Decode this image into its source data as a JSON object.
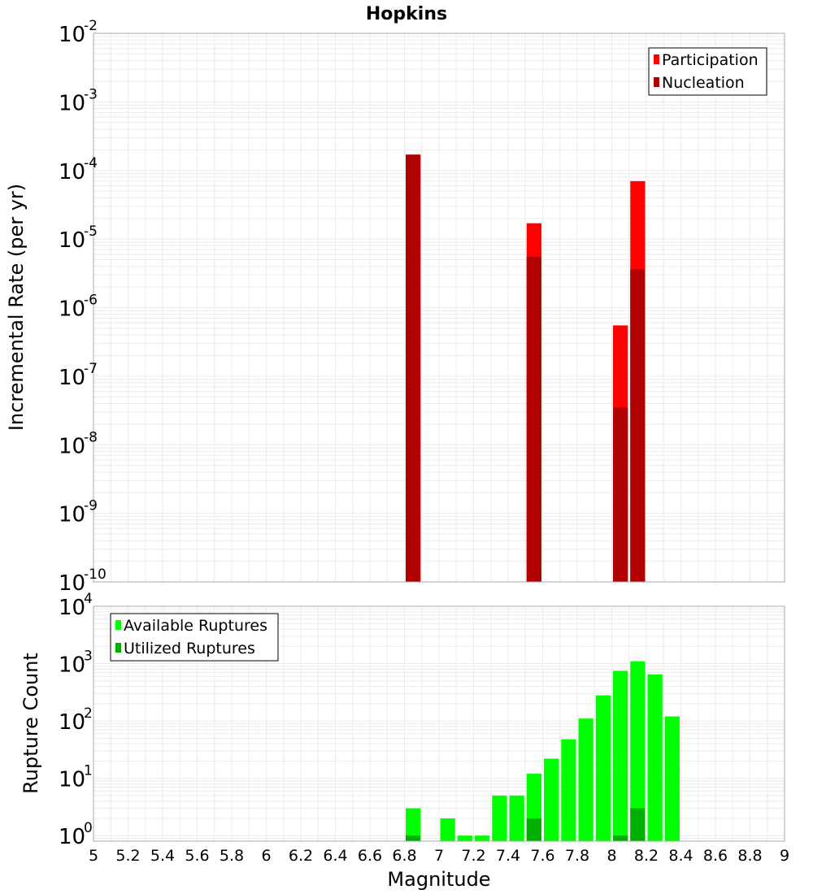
{
  "chart_data": [
    {
      "type": "bar",
      "title": "Hopkins",
      "ylabel": "Incremental Rate (per yr)",
      "xlabel": "",
      "yscale": "log",
      "ylim": [
        1e-10,
        0.01
      ],
      "xlim": [
        5,
        9
      ],
      "y_ticks": [
        {
          "base": "10",
          "exp": "-10",
          "value": 1e-10
        },
        {
          "base": "10",
          "exp": "-9",
          "value": 1e-09
        },
        {
          "base": "10",
          "exp": "-8",
          "value": 1e-08
        },
        {
          "base": "10",
          "exp": "-7",
          "value": 1e-07
        },
        {
          "base": "10",
          "exp": "-6",
          "value": 1e-06
        },
        {
          "base": "10",
          "exp": "-5",
          "value": 1e-05
        },
        {
          "base": "10",
          "exp": "-4",
          "value": 0.0001
        },
        {
          "base": "10",
          "exp": "-3",
          "value": 0.001
        },
        {
          "base": "10",
          "exp": "-2",
          "value": 0.01
        }
      ],
      "bin_width": 0.1,
      "series": [
        {
          "name": "Participation",
          "color": "#ff0000",
          "points": [
            {
              "x": 6.85,
              "y": 0.00017
            },
            {
              "x": 7.55,
              "y": 1.7e-05
            },
            {
              "x": 8.05,
              "y": 5.5e-07
            },
            {
              "x": 8.15,
              "y": 7e-05
            }
          ]
        },
        {
          "name": "Nucleation",
          "color": "#b00000",
          "points": [
            {
              "x": 6.85,
              "y": 0.00017
            },
            {
              "x": 7.55,
              "y": 5.5e-06
            },
            {
              "x": 8.05,
              "y": 3.5e-08
            },
            {
              "x": 8.15,
              "y": 3.6e-06
            }
          ]
        }
      ],
      "legend": {
        "position": "top-right",
        "entries": [
          "Participation",
          "Nucleation"
        ]
      }
    },
    {
      "type": "bar",
      "title": "",
      "ylabel": "Rupture Count",
      "xlabel": "Magnitude",
      "yscale": "log",
      "ylim": [
        0.8,
        10000
      ],
      "xlim": [
        5,
        9
      ],
      "x_ticks": [
        "5",
        "5.2",
        "5.4",
        "5.6",
        "5.8",
        "6",
        "6.2",
        "6.4",
        "6.6",
        "6.8",
        "7",
        "7.2",
        "7.4",
        "7.6",
        "7.8",
        "8",
        "8.2",
        "8.4",
        "8.6",
        "8.8",
        "9"
      ],
      "y_ticks": [
        {
          "base": "10",
          "exp": "0",
          "value": 1
        },
        {
          "base": "10",
          "exp": "1",
          "value": 10
        },
        {
          "base": "10",
          "exp": "2",
          "value": 100
        },
        {
          "base": "10",
          "exp": "3",
          "value": 1000
        },
        {
          "base": "10",
          "exp": "4",
          "value": 10000
        }
      ],
      "bin_width": 0.1,
      "series": [
        {
          "name": "Available Ruptures",
          "color": "#00ff00",
          "points": [
            {
              "x": 6.85,
              "y": 3
            },
            {
              "x": 7.05,
              "y": 2
            },
            {
              "x": 7.15,
              "y": 1
            },
            {
              "x": 7.25,
              "y": 1
            },
            {
              "x": 7.35,
              "y": 5
            },
            {
              "x": 7.45,
              "y": 5
            },
            {
              "x": 7.55,
              "y": 12
            },
            {
              "x": 7.65,
              "y": 22
            },
            {
              "x": 7.75,
              "y": 48
            },
            {
              "x": 7.85,
              "y": 110
            },
            {
              "x": 7.95,
              "y": 280
            },
            {
              "x": 8.05,
              "y": 750
            },
            {
              "x": 8.15,
              "y": 1100
            },
            {
              "x": 8.25,
              "y": 650
            },
            {
              "x": 8.35,
              "y": 120
            }
          ]
        },
        {
          "name": "Utilized Ruptures",
          "color": "#00b000",
          "points": [
            {
              "x": 6.85,
              "y": 1
            },
            {
              "x": 7.55,
              "y": 2
            },
            {
              "x": 8.05,
              "y": 1
            },
            {
              "x": 8.15,
              "y": 3
            }
          ]
        }
      ],
      "legend": {
        "position": "top-left",
        "entries": [
          "Available Ruptures",
          "Utilized Ruptures"
        ]
      }
    }
  ]
}
